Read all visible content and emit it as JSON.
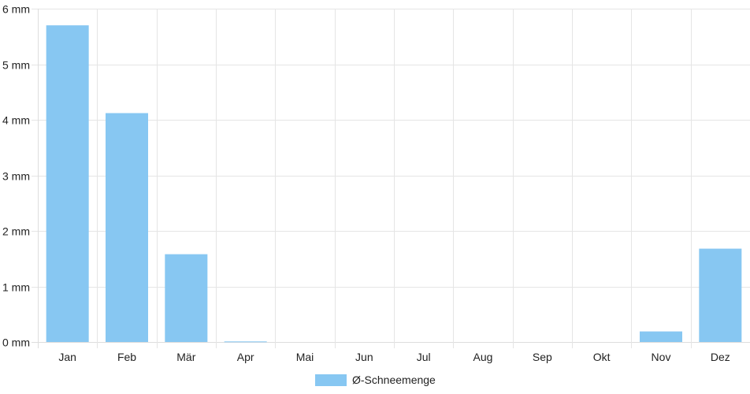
{
  "chart_data": {
    "type": "bar",
    "categories": [
      "Jan",
      "Feb",
      "Mär",
      "Apr",
      "Mai",
      "Jun",
      "Jul",
      "Aug",
      "Sep",
      "Okt",
      "Nov",
      "Dez"
    ],
    "series": [
      {
        "name": "Ø-Schneemenge",
        "values": [
          5.7,
          4.12,
          1.58,
          0.01,
          0,
          0,
          0,
          0,
          0,
          0,
          0.19,
          1.68
        ],
        "color": "#87c7f2"
      }
    ],
    "y_ticks": [
      "0 mm",
      "1 mm",
      "2 mm",
      "3 mm",
      "4 mm",
      "5 mm",
      "6 mm"
    ],
    "ylim": [
      0,
      6
    ],
    "grid": true,
    "legend_position": "bottom",
    "gridline_color": "#e5e5e5",
    "axis_color": "#dddddd"
  }
}
